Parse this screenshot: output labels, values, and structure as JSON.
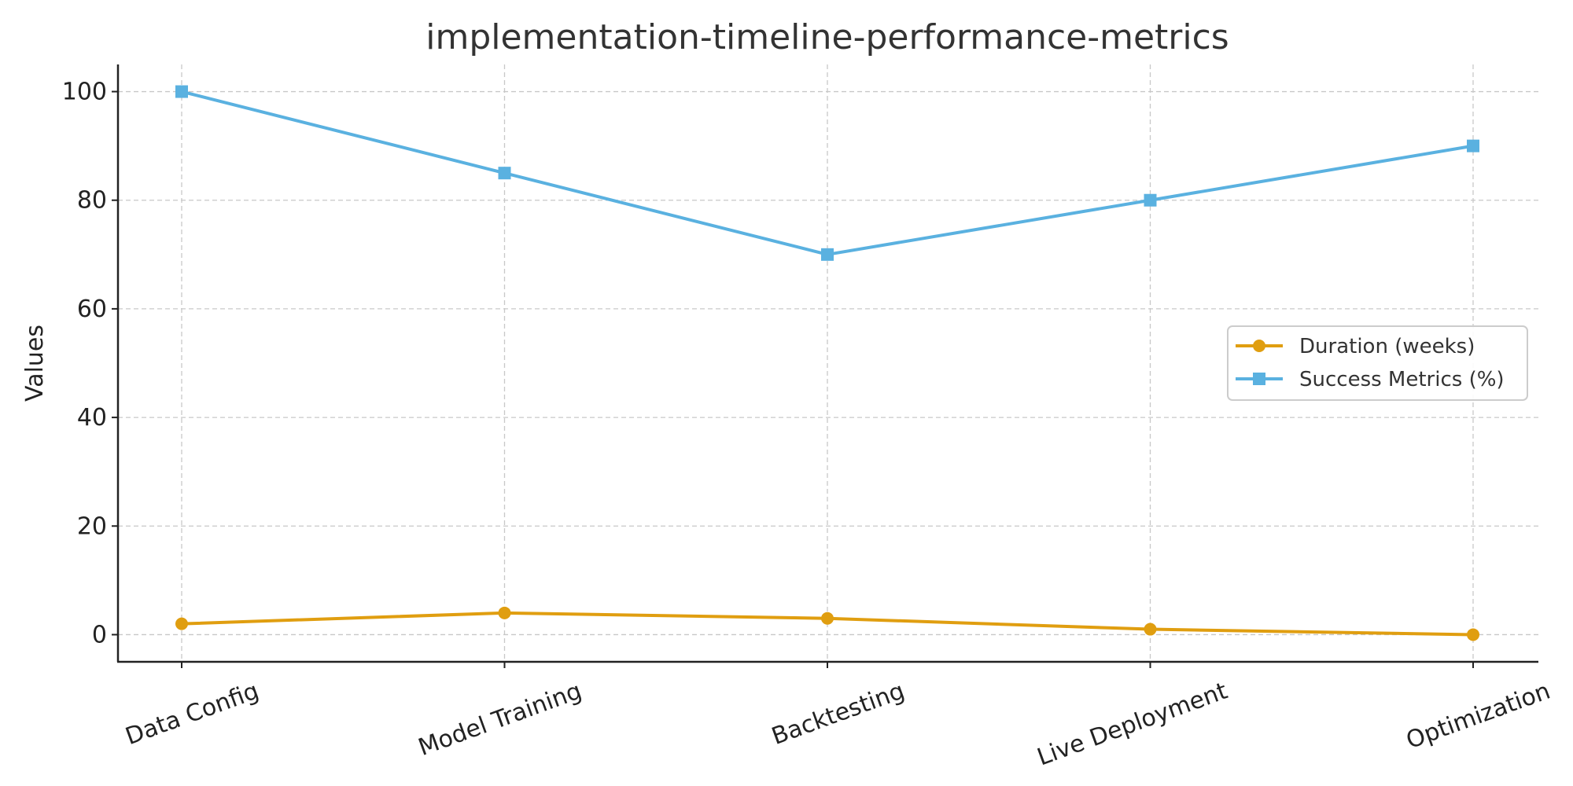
{
  "chart_data": {
    "type": "line",
    "title": "implementation-timeline-performance-metrics",
    "xlabel": "",
    "ylabel": "Values",
    "categories": [
      "Data Config",
      "Model Training",
      "Backtesting",
      "Live Deployment",
      "Optimization"
    ],
    "ylim": [
      -5,
      105
    ],
    "yticks": [
      0,
      20,
      40,
      60,
      80,
      100
    ],
    "grid": true,
    "legend_position": "center-right",
    "series": [
      {
        "name": "Duration (weeks)",
        "values": [
          2,
          4,
          3,
          1,
          0
        ],
        "color": "#e09e10",
        "marker": "circle"
      },
      {
        "name": "Success Metrics (%)",
        "values": [
          100,
          85,
          70,
          80,
          90
        ],
        "color": "#5ab1e0",
        "marker": "square"
      }
    ]
  }
}
